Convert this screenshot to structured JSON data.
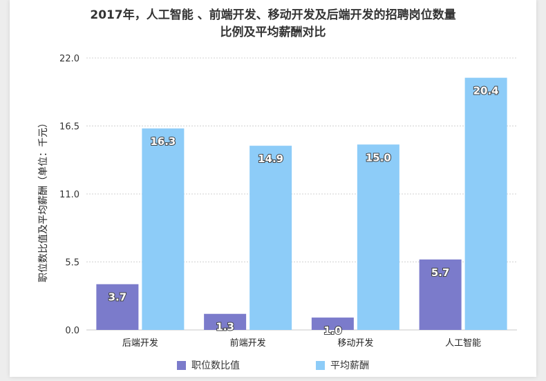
{
  "chart_data": {
    "type": "bar",
    "title_line1": "2017年，人工智能 、前端开发、移动开发及后端开发的招聘岗位数量",
    "title_line2": "比例及平均薪酬对比",
    "xlabel": "",
    "ylabel": "职位数比值及平均薪酬（单位：千元）",
    "categories": [
      "后端开发",
      "前端开发",
      "移动开发",
      "人工智能"
    ],
    "series": [
      {
        "name": "职位数比值",
        "color": "#7b7bcb",
        "values": [
          3.7,
          1.3,
          1.0,
          5.7
        ]
      },
      {
        "name": "平均薪酬",
        "color": "#8dccf8",
        "values": [
          16.3,
          14.9,
          15.0,
          20.4
        ]
      }
    ],
    "yticks": [
      "0.0",
      "5.5",
      "11.0",
      "16.5",
      "22.0"
    ],
    "ylim": [
      0,
      22
    ],
    "grid": true,
    "legend_position": "bottom"
  }
}
